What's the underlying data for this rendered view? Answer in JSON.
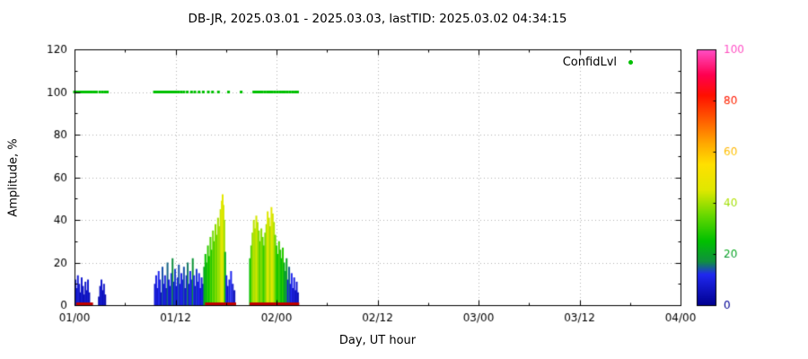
{
  "chart_data": {
    "type": "bar",
    "title": "DB-JR, 2025.03.01 - 2025.03.03, lastTID: 2025.03.02 04:34:15",
    "xlabel": "Day, UT hour",
    "ylabel": "Amplitude, %",
    "xlim_hours": [
      0,
      72
    ],
    "ylim": [
      0,
      120
    ],
    "grid": true,
    "x_ticks": [
      {
        "hour": 0,
        "label": "01/00"
      },
      {
        "hour": 12,
        "label": "01/12"
      },
      {
        "hour": 24,
        "label": "02/00"
      },
      {
        "hour": 36,
        "label": "02/12"
      },
      {
        "hour": 48,
        "label": "03/00"
      },
      {
        "hour": 60,
        "label": "03/12"
      },
      {
        "hour": 72,
        "label": "04/00"
      }
    ],
    "x_minor_step_hours": 6,
    "y_ticks": [
      0,
      20,
      40,
      60,
      80,
      100,
      120
    ],
    "y_minor_step": 10,
    "legend": {
      "label": "ConfidLvl",
      "position": "top-right",
      "marker_color": "#00c000"
    },
    "colorbar": {
      "min": 0,
      "max": 100,
      "ticks": [
        0,
        20,
        40,
        60,
        80,
        100
      ],
      "palette": [
        [
          0,
          "#000090"
        ],
        [
          12,
          "#2028f0"
        ],
        [
          17,
          "#109040"
        ],
        [
          25,
          "#00c000"
        ],
        [
          35,
          "#66d800"
        ],
        [
          45,
          "#e0e800"
        ],
        [
          55,
          "#ffe000"
        ],
        [
          63,
          "#ffaa00"
        ],
        [
          72,
          "#ff6000"
        ],
        [
          82,
          "#ff1000"
        ],
        [
          90,
          "#ff0050"
        ],
        [
          100,
          "#ff50c8"
        ]
      ]
    },
    "confidence_level_dots": {
      "y": 100,
      "color": "#00c000",
      "hours": [
        0.0,
        0.2,
        0.4,
        0.6,
        0.8,
        1.0,
        1.2,
        1.4,
        1.6,
        1.8,
        2.0,
        2.3,
        2.6,
        3.0,
        3.3,
        3.6,
        3.9,
        9.5,
        9.7,
        9.9,
        10.1,
        10.3,
        10.5,
        10.7,
        10.9,
        11.1,
        11.3,
        11.5,
        11.7,
        11.9,
        12.1,
        12.4,
        12.7,
        13.0,
        13.4,
        13.9,
        14.3,
        14.8,
        15.3,
        15.9,
        16.4,
        17.1,
        18.3,
        19.8,
        21.3,
        21.5,
        21.7,
        21.9,
        22.1,
        22.3,
        22.6,
        22.9,
        23.2,
        23.5,
        23.8,
        24.1,
        24.4,
        24.7,
        25.0,
        25.3,
        25.6,
        25.9,
        26.2,
        26.5
      ]
    },
    "bar_color_by": "confidence",
    "bars_hour_amp_conf": [
      [
        0.1,
        12,
        8
      ],
      [
        0.25,
        8,
        6
      ],
      [
        0.4,
        14,
        9
      ],
      [
        0.55,
        10,
        7
      ],
      [
        0.7,
        6,
        5
      ],
      [
        0.85,
        13,
        8
      ],
      [
        1.0,
        9,
        6
      ],
      [
        1.15,
        5,
        5
      ],
      [
        1.3,
        11,
        7
      ],
      [
        1.45,
        7,
        6
      ],
      [
        1.6,
        12,
        8
      ],
      [
        1.75,
        6,
        5
      ],
      [
        2.9,
        4,
        4
      ],
      [
        3.05,
        9,
        6
      ],
      [
        3.2,
        12,
        8
      ],
      [
        3.35,
        7,
        5
      ],
      [
        3.5,
        10,
        7
      ],
      [
        3.65,
        5,
        4
      ],
      [
        9.55,
        10,
        8
      ],
      [
        9.7,
        14,
        10
      ],
      [
        9.85,
        8,
        6
      ],
      [
        10.0,
        16,
        12
      ],
      [
        10.15,
        12,
        9
      ],
      [
        10.3,
        6,
        5
      ],
      [
        10.45,
        18,
        14
      ],
      [
        10.6,
        10,
        8
      ],
      [
        10.75,
        14,
        10
      ],
      [
        10.9,
        8,
        6
      ],
      [
        11.05,
        20,
        15
      ],
      [
        11.2,
        12,
        9
      ],
      [
        11.35,
        9,
        7
      ],
      [
        11.5,
        15,
        11
      ],
      [
        11.65,
        22,
        17
      ],
      [
        11.8,
        11,
        8
      ],
      [
        11.95,
        17,
        13
      ],
      [
        12.1,
        9,
        7
      ],
      [
        12.25,
        13,
        10
      ],
      [
        12.4,
        19,
        14
      ],
      [
        12.55,
        10,
        8
      ],
      [
        12.7,
        15,
        11
      ],
      [
        12.85,
        12,
        9
      ],
      [
        13.0,
        18,
        14
      ],
      [
        13.15,
        8,
        6
      ],
      [
        13.3,
        14,
        10
      ],
      [
        13.45,
        20,
        16
      ],
      [
        13.6,
        10,
        8
      ],
      [
        13.75,
        16,
        12
      ],
      [
        13.9,
        12,
        9
      ],
      [
        14.05,
        22,
        18
      ],
      [
        14.2,
        14,
        11
      ],
      [
        14.35,
        9,
        7
      ],
      [
        14.5,
        17,
        13
      ],
      [
        14.65,
        11,
        8
      ],
      [
        14.8,
        15,
        12
      ],
      [
        14.95,
        8,
        6
      ],
      [
        15.1,
        13,
        10
      ],
      [
        15.25,
        10,
        8
      ],
      [
        15.4,
        18,
        20
      ],
      [
        15.55,
        24,
        26
      ],
      [
        15.7,
        20,
        22
      ],
      [
        15.85,
        28,
        30
      ],
      [
        16.0,
        23,
        25
      ],
      [
        16.15,
        32,
        33
      ],
      [
        16.3,
        26,
        28
      ],
      [
        16.45,
        35,
        36
      ],
      [
        16.6,
        30,
        31
      ],
      [
        16.75,
        38,
        38
      ],
      [
        16.9,
        33,
        34
      ],
      [
        17.05,
        41,
        40
      ],
      [
        17.2,
        37,
        38
      ],
      [
        17.35,
        45,
        43
      ],
      [
        17.5,
        49,
        45
      ],
      [
        17.6,
        52,
        46
      ],
      [
        17.7,
        47,
        44
      ],
      [
        17.8,
        40,
        40
      ],
      [
        17.9,
        25,
        22
      ],
      [
        18.05,
        14,
        11
      ],
      [
        18.2,
        9,
        7
      ],
      [
        18.4,
        12,
        9
      ],
      [
        18.6,
        16,
        12
      ],
      [
        18.8,
        10,
        8
      ],
      [
        19.0,
        7,
        5
      ],
      [
        20.85,
        22,
        26
      ],
      [
        21.0,
        28,
        32
      ],
      [
        21.15,
        34,
        38
      ],
      [
        21.3,
        40,
        42
      ],
      [
        21.45,
        36,
        40
      ],
      [
        21.6,
        42,
        44
      ],
      [
        21.75,
        39,
        41
      ],
      [
        21.9,
        35,
        37
      ],
      [
        22.05,
        30,
        33
      ],
      [
        22.2,
        36,
        38
      ],
      [
        22.35,
        32,
        34
      ],
      [
        22.5,
        28,
        30
      ],
      [
        22.65,
        34,
        36
      ],
      [
        22.8,
        38,
        40
      ],
      [
        22.95,
        44,
        45
      ],
      [
        23.1,
        41,
        43
      ],
      [
        23.25,
        37,
        39
      ],
      [
        23.4,
        46,
        46
      ],
      [
        23.55,
        43,
        44
      ],
      [
        23.7,
        39,
        41
      ],
      [
        23.85,
        33,
        35
      ],
      [
        24.0,
        28,
        30
      ],
      [
        24.15,
        24,
        26
      ],
      [
        24.3,
        30,
        32
      ],
      [
        24.45,
        26,
        28
      ],
      [
        24.6,
        22,
        24
      ],
      [
        24.75,
        27,
        29
      ],
      [
        24.9,
        20,
        22
      ],
      [
        25.05,
        16,
        18
      ],
      [
        25.2,
        22,
        20
      ],
      [
        25.35,
        12,
        10
      ],
      [
        25.5,
        18,
        15
      ],
      [
        25.65,
        10,
        8
      ],
      [
        25.8,
        15,
        12
      ],
      [
        25.95,
        8,
        6
      ],
      [
        26.1,
        13,
        10
      ],
      [
        26.25,
        7,
        5
      ],
      [
        26.4,
        11,
        8
      ],
      [
        26.55,
        6,
        5
      ]
    ],
    "red_baseline_segments_hours": [
      [
        0.2,
        2.2
      ],
      [
        15.5,
        19.2
      ],
      [
        20.8,
        26.7
      ]
    ],
    "red_marker_color": "#c00000"
  }
}
